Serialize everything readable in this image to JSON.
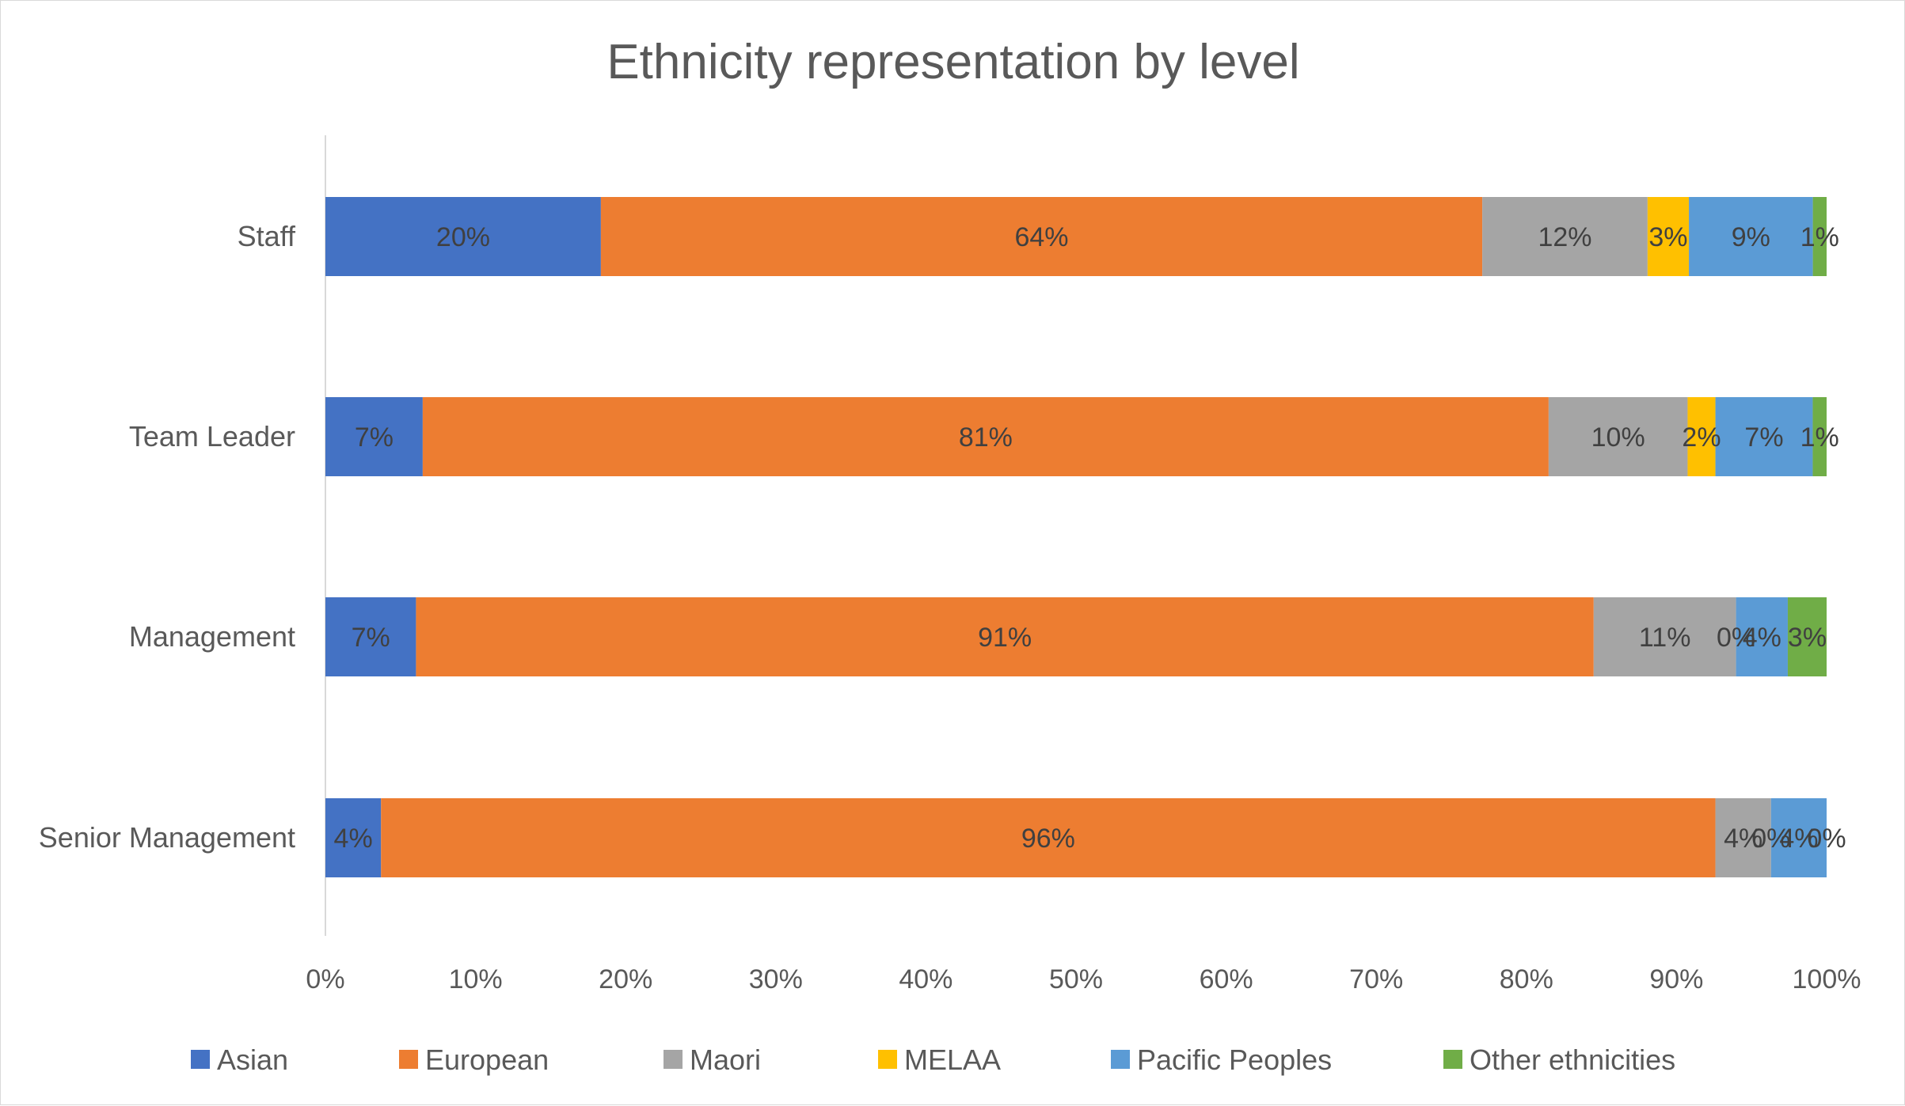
{
  "chart_data": {
    "type": "bar",
    "orientation": "horizontal",
    "stacked": "percent",
    "title": "Ethnicity representation by level",
    "xlabel": "",
    "ylabel": "",
    "xlim": [
      0,
      100
    ],
    "ticks": [
      "0%",
      "10%",
      "20%",
      "30%",
      "40%",
      "50%",
      "60%",
      "70%",
      "80%",
      "90%",
      "100%"
    ],
    "categories": [
      "Staff",
      "Team Leader",
      "Management",
      "Senior Management"
    ],
    "series": [
      {
        "name": "Asian",
        "color": "#4472C4",
        "values": [
          20,
          7,
          7,
          4
        ],
        "labels": [
          "20%",
          "7%",
          "7%",
          "4%"
        ]
      },
      {
        "name": "European",
        "color": "#ED7D31",
        "values": [
          64,
          81,
          91,
          96
        ],
        "labels": [
          "64%",
          "81%",
          "91%",
          "96%"
        ]
      },
      {
        "name": "Maori",
        "color": "#A5A5A5",
        "values": [
          12,
          10,
          11,
          4
        ],
        "labels": [
          "12%",
          "10%",
          "11%",
          "4%"
        ]
      },
      {
        "name": "MELAA",
        "color": "#FFC000",
        "values": [
          3,
          2,
          0,
          0
        ],
        "labels": [
          "3%",
          "2%",
          "0%",
          "0%"
        ]
      },
      {
        "name": "Pacific Peoples",
        "color": "#5B9BD5",
        "values": [
          9,
          7,
          4,
          4
        ],
        "labels": [
          "9%",
          "7%",
          "4%",
          "4%"
        ]
      },
      {
        "name": "Other ethnicities",
        "color": "#70AD47",
        "values": [
          1,
          1,
          3,
          0
        ],
        "labels": [
          "1%",
          "1%",
          "3%",
          "0%"
        ]
      }
    ],
    "legend": "bottom",
    "grid": false
  }
}
